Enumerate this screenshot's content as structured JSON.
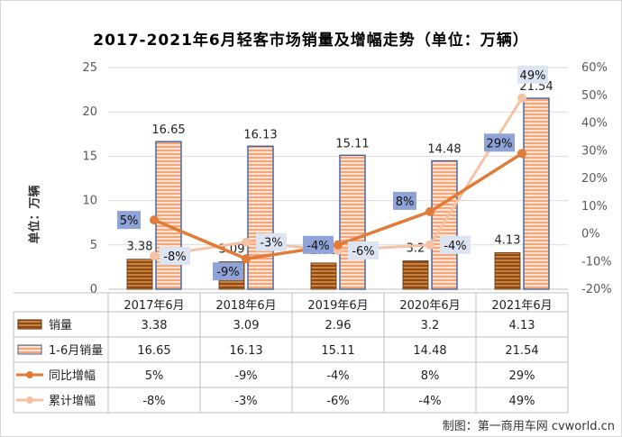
{
  "chart_data": {
    "type": "bar+line",
    "title": "2017-2021年6月轻客市场销量及增幅走势（单位：万辆）",
    "ylabel": "单位：万辆",
    "categories": [
      "2017年6月",
      "2018年6月",
      "2019年6月",
      "2020年6月",
      "2021年6月"
    ],
    "ylim": [
      0,
      25
    ],
    "y_ticks": [
      "0",
      "5",
      "10",
      "15",
      "20",
      "25"
    ],
    "y2lim": [
      -20,
      60
    ],
    "y2_ticks": [
      "-20%",
      "-10%",
      "0%",
      "10%",
      "20%",
      "30%",
      "40%",
      "50%",
      "60%"
    ],
    "series": [
      {
        "name": "销量",
        "kind": "bar",
        "values": [
          3.38,
          3.09,
          2.96,
          3.2,
          4.13
        ],
        "labels": [
          "3.38",
          "3.09",
          "2.96",
          "3.2",
          "4.13"
        ],
        "color": "#b86a2c"
      },
      {
        "name": "1-6月销量",
        "kind": "bar",
        "values": [
          16.65,
          16.13,
          15.11,
          14.48,
          21.54
        ],
        "labels": [
          "16.65",
          "16.13",
          "15.11",
          "14.48",
          "21.54"
        ],
        "color": "#f4b183"
      },
      {
        "name": "同比增幅",
        "kind": "line",
        "axis": "y2",
        "values": [
          5,
          -9,
          -4,
          8,
          29
        ],
        "labels": [
          "5%",
          "-9%",
          "-4%",
          "8%",
          "29%"
        ],
        "color": "#e07b39"
      },
      {
        "name": "累计增幅",
        "kind": "line",
        "axis": "y2",
        "values": [
          -8,
          -3,
          -6,
          -4,
          49
        ],
        "labels": [
          "-8%",
          "-3%",
          "-6%",
          "-4%",
          "49%"
        ],
        "color": "#f6c1a4"
      }
    ]
  },
  "source": "制图：第一商用车网 cvworld.cn"
}
